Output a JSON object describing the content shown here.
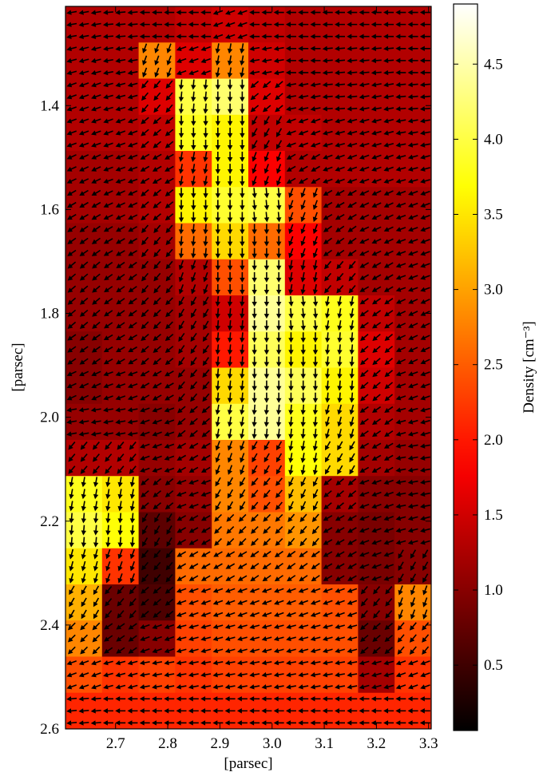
{
  "chart_data": {
    "type": "heatmap",
    "colormap": "hot",
    "xlabel": "[parsec]",
    "ylabel": "[parsec]",
    "colorbar_label": "Density [cm⁻³]",
    "xlim": [
      2.604,
      3.305
    ],
    "ylim": [
      1.209,
      2.6
    ],
    "y_inverted": true,
    "xticks": [
      2.7,
      2.8,
      2.9,
      {
        "value": 3,
        "label": "3.0"
      },
      3.1,
      3.2,
      3.3
    ],
    "yticks": [
      1.4,
      1.6,
      1.8,
      {
        "value": 2,
        "label": "2.0"
      },
      2.2,
      2.4,
      2.6
    ],
    "clim": [
      0.065,
      4.9
    ],
    "cticks": [
      0.5,
      {
        "value": 1,
        "label": "1.0"
      },
      1.5,
      {
        "value": 2,
        "label": "2.0"
      },
      2.5,
      {
        "value": 3,
        "label": "3.0"
      },
      3.5,
      {
        "value": 4,
        "label": "4.0"
      },
      4.5
    ],
    "z": [
      [
        1.3,
        1.3,
        1.3,
        1.4,
        1.5,
        1.4,
        1.3,
        1.3,
        1.3,
        1.3
      ],
      [
        1.3,
        1.3,
        2.8,
        1.6,
        2.8,
        1.5,
        1.3,
        1.3,
        1.3,
        1.3
      ],
      [
        1.3,
        1.3,
        1.6,
        4.0,
        4.2,
        1.6,
        1.3,
        1.3,
        1.3,
        1.3
      ],
      [
        1.3,
        1.3,
        1.4,
        3.8,
        3.6,
        1.4,
        1.4,
        1.3,
        1.3,
        1.3
      ],
      [
        1.2,
        1.2,
        1.3,
        2.2,
        3.6,
        1.8,
        1.3,
        1.3,
        1.3,
        1.3
      ],
      [
        1.2,
        1.2,
        1.3,
        3.6,
        3.9,
        4.0,
        2.4,
        1.2,
        1.2,
        1.2
      ],
      [
        1.1,
        1.1,
        1.2,
        2.6,
        3.4,
        2.6,
        1.8,
        1.2,
        1.2,
        1.2
      ],
      [
        1.1,
        1.1,
        1.1,
        1.3,
        2.4,
        4.2,
        1.6,
        1.4,
        1.2,
        1.2
      ],
      [
        1.1,
        1.1,
        1.1,
        1.2,
        1.5,
        4.4,
        4.0,
        3.8,
        1.4,
        1.2
      ],
      [
        1.0,
        1.1,
        1.1,
        1.2,
        2.0,
        4.1,
        3.6,
        3.9,
        1.6,
        1.2
      ],
      [
        1.0,
        1.1,
        1.1,
        1.1,
        3.4,
        4.4,
        4.1,
        3.6,
        1.5,
        1.2
      ],
      [
        1.1,
        1.1,
        1.0,
        1.1,
        4.0,
        4.4,
        3.8,
        3.4,
        1.3,
        1.2
      ],
      [
        1.3,
        1.3,
        1.1,
        1.2,
        2.8,
        2.3,
        3.7,
        3.4,
        1.2,
        1.1
      ],
      [
        3.8,
        3.5,
        1.0,
        1.1,
        2.8,
        2.4,
        3.2,
        1.2,
        1.0,
        1.0
      ],
      [
        4.0,
        3.7,
        0.7,
        1.0,
        2.7,
        2.7,
        2.9,
        1.0,
        0.9,
        1.0
      ],
      [
        3.5,
        2.2,
        0.5,
        2.6,
        2.6,
        2.6,
        2.6,
        1.0,
        0.9,
        1.0
      ],
      [
        3.1,
        0.8,
        0.6,
        2.4,
        2.5,
        2.5,
        2.5,
        2.4,
        1.0,
        2.8
      ],
      [
        2.8,
        0.8,
        1.0,
        2.3,
        2.4,
        2.4,
        2.4,
        2.4,
        0.8,
        2.4
      ],
      [
        2.4,
        2.2,
        2.3,
        2.2,
        2.3,
        2.3,
        2.3,
        2.3,
        1.2,
        2.2
      ],
      [
        2.1,
        2.1,
        2.1,
        2.1,
        2.1,
        2.1,
        2.1,
        2.1,
        2.1,
        2.1
      ]
    ],
    "arrow_angles": [
      [
        190,
        185,
        180,
        180,
        200,
        180,
        180,
        180,
        180,
        180
      ],
      [
        195,
        190,
        250,
        200,
        260,
        190,
        180,
        185,
        185,
        180
      ],
      [
        200,
        195,
        230,
        265,
        270,
        220,
        190,
        185,
        190,
        185
      ],
      [
        200,
        200,
        220,
        270,
        270,
        240,
        200,
        195,
        195,
        190
      ],
      [
        205,
        200,
        210,
        260,
        270,
        250,
        210,
        200,
        200,
        195
      ],
      [
        210,
        205,
        220,
        270,
        270,
        275,
        250,
        210,
        205,
        200
      ],
      [
        215,
        210,
        230,
        265,
        270,
        270,
        250,
        215,
        205,
        200
      ],
      [
        220,
        215,
        230,
        250,
        270,
        270,
        260,
        230,
        210,
        200
      ],
      [
        220,
        215,
        225,
        240,
        265,
        270,
        275,
        260,
        215,
        205
      ],
      [
        215,
        210,
        220,
        235,
        265,
        270,
        270,
        265,
        220,
        205
      ],
      [
        205,
        200,
        210,
        230,
        265,
        270,
        270,
        265,
        220,
        200
      ],
      [
        190,
        190,
        200,
        220,
        260,
        265,
        265,
        255,
        215,
        195
      ],
      [
        230,
        230,
        200,
        210,
        250,
        240,
        260,
        240,
        210,
        190
      ],
      [
        260,
        260,
        220,
        200,
        240,
        230,
        245,
        220,
        200,
        190
      ],
      [
        265,
        265,
        240,
        210,
        225,
        225,
        230,
        210,
        200,
        195
      ],
      [
        255,
        250,
        230,
        210,
        210,
        215,
        215,
        210,
        200,
        240
      ],
      [
        240,
        230,
        220,
        200,
        200,
        200,
        200,
        200,
        230,
        250
      ],
      [
        225,
        215,
        200,
        195,
        195,
        195,
        195,
        195,
        220,
        230
      ],
      [
        200,
        195,
        190,
        190,
        190,
        190,
        190,
        190,
        195,
        200
      ],
      [
        185,
        180,
        180,
        180,
        180,
        180,
        180,
        180,
        180,
        180
      ]
    ],
    "arrow_color": "#000000"
  }
}
